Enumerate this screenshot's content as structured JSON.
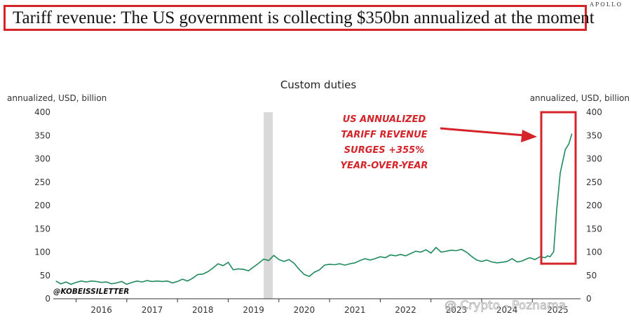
{
  "header": {
    "brand": "APOLLO",
    "headline": "Tariff revenue: The US government is collecting $350bn annualized at the moment"
  },
  "annotation": {
    "lines": [
      "US ANNUALIZED",
      "TARIFF REVENUE",
      "SURGES +355%",
      "YEAR-OVER-YEAR"
    ],
    "color": "#d4242a"
  },
  "watermarks": {
    "handle": "@KOBEISSILETTER",
    "source": "@ Crypto - Poznama"
  },
  "colors": {
    "line": "#1f8a5b",
    "highlight": "#d4242a",
    "recession_band": "#d9d9d9"
  },
  "chart_data": {
    "type": "line",
    "title": "Custom duties",
    "ylabel_left": "annualized, USD, billion",
    "ylabel_right": "annualized, USD, billion",
    "ylim": [
      0,
      400
    ],
    "yticks": [
      0,
      50,
      100,
      150,
      200,
      250,
      300,
      350,
      400
    ],
    "xlim": [
      2015.55,
      2025.95
    ],
    "xticks": [
      "2016",
      "2017",
      "2018",
      "2019",
      "2020",
      "2021",
      "2022",
      "2023",
      "2024",
      "2025"
    ],
    "grid": false,
    "shaded_period": [
      2019.7,
      2019.88
    ],
    "series": [
      {
        "x": [
          2015.6,
          2015.7,
          2015.8,
          2015.9,
          2016.0,
          2016.1,
          2016.2,
          2016.3,
          2016.4,
          2016.5,
          2016.6,
          2016.7,
          2016.8,
          2016.9,
          2017.0,
          2017.1,
          2017.2,
          2017.3,
          2017.4,
          2017.5,
          2017.6,
          2017.7,
          2017.8,
          2017.9,
          2018.0,
          2018.1,
          2018.2,
          2018.3,
          2018.4,
          2018.5,
          2018.6,
          2018.7,
          2018.8,
          2018.9,
          2019.0,
          2019.1,
          2019.2,
          2019.3,
          2019.4,
          2019.5,
          2019.6,
          2019.7,
          2019.8,
          2019.9,
          2020.0,
          2020.1,
          2020.2,
          2020.3,
          2020.4,
          2020.5,
          2020.6,
          2020.7,
          2020.8,
          2020.9,
          2021.0,
          2021.1,
          2021.2,
          2021.3,
          2021.4,
          2021.5,
          2021.6,
          2021.7,
          2021.8,
          2021.9,
          2022.0,
          2022.1,
          2022.2,
          2022.3,
          2022.4,
          2022.5,
          2022.6,
          2022.7,
          2022.8,
          2022.9,
          2023.0,
          2023.1,
          2023.2,
          2023.3,
          2023.4,
          2023.5,
          2023.6,
          2023.7,
          2023.8,
          2023.9,
          2024.0,
          2024.1,
          2024.2,
          2024.3,
          2024.4,
          2024.5,
          2024.6,
          2024.7,
          2024.8,
          2024.9,
          2025.0,
          2025.1,
          2025.2,
          2025.3,
          2025.4,
          2025.5,
          2025.6,
          2025.7
        ],
        "y": [
          38,
          32,
          36,
          31,
          35,
          38,
          36,
          38,
          37,
          35,
          36,
          32,
          34,
          37,
          31,
          35,
          38,
          36,
          39,
          37,
          38,
          37,
          38,
          34,
          37,
          42,
          38,
          44,
          52,
          53,
          58,
          66,
          75,
          71,
          78,
          62,
          64,
          63,
          60,
          68,
          76,
          85,
          82,
          93,
          84,
          80,
          84,
          76,
          63,
          52,
          48,
          57,
          62,
          72,
          74,
          73,
          75,
          72,
          75,
          77,
          82,
          86,
          83,
          86,
          90,
          88,
          94,
          92,
          95,
          92,
          97,
          102,
          100,
          105,
          98,
          110,
          100,
          102,
          104,
          103,
          106,
          100,
          91,
          83,
          80,
          83,
          79,
          77,
          78,
          80,
          86,
          79,
          81,
          86,
          80,
          74,
          79,
          76,
          72,
          78,
          84,
          65
        ]
      }
    ],
    "series_full_note": "",
    "tail": {
      "x": [
        2024.95,
        2025.05,
        2025.15,
        2025.25,
        2025.3,
        2025.35,
        2025.42,
        2025.48,
        2025.55,
        2025.65,
        2025.72,
        2025.78
      ],
      "y": [
        88,
        84,
        90,
        88,
        92,
        90,
        101,
        190,
        270,
        320,
        332,
        354
      ]
    }
  }
}
